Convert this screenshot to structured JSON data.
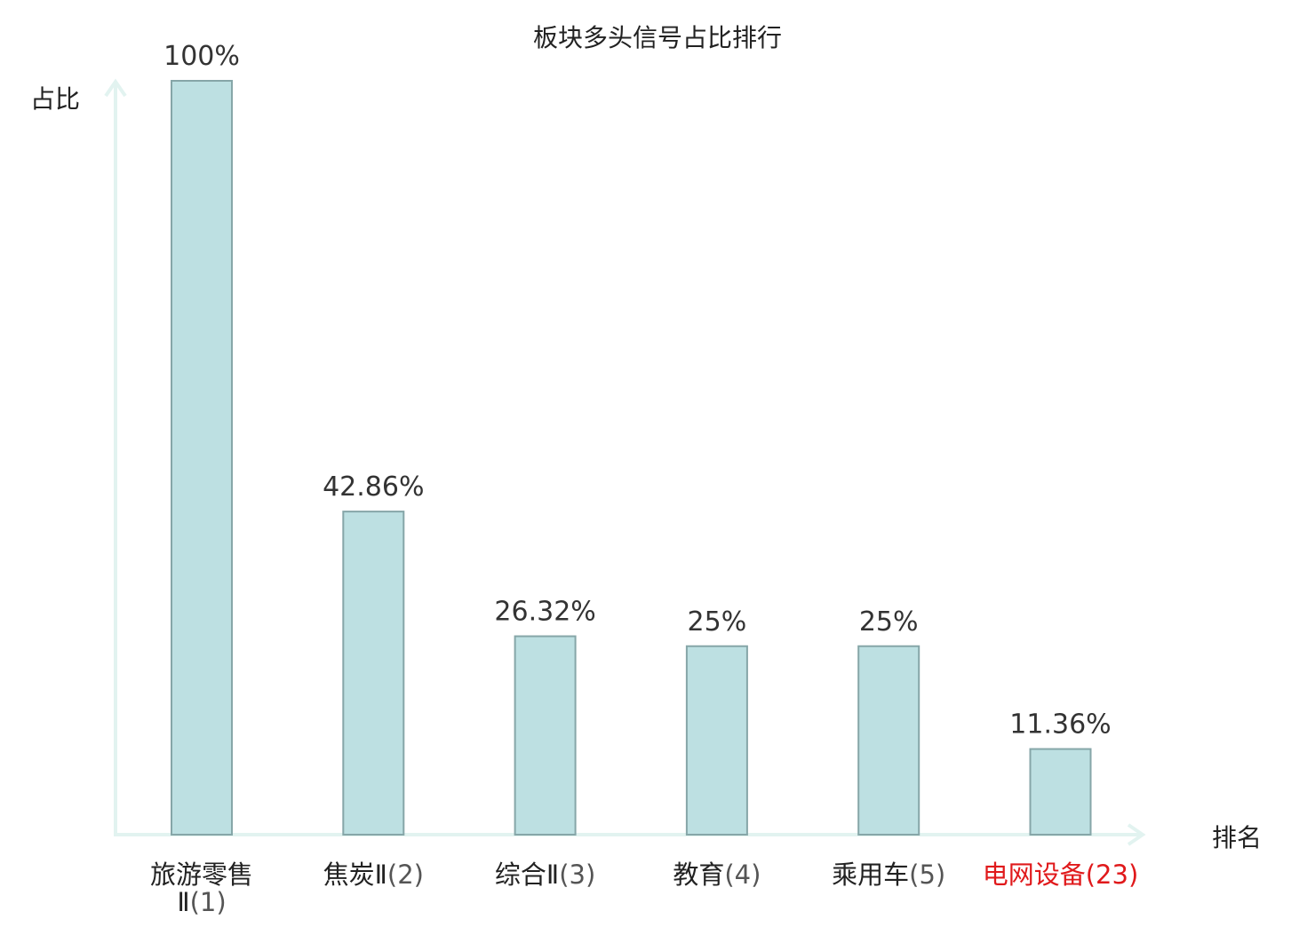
{
  "chart_data": {
    "type": "bar",
    "title": "板块多头信号占比排行",
    "ylabel": "占比",
    "xlabel": "排名",
    "ylim": [
      0,
      100
    ],
    "grid": false,
    "legend": "none",
    "categories": [
      {
        "name": "旅游零售Ⅱ",
        "rank": "(1)",
        "highlight": false
      },
      {
        "name": "焦炭Ⅱ",
        "rank": "(2)",
        "highlight": false
      },
      {
        "name": "综合Ⅱ",
        "rank": "(3)",
        "highlight": false
      },
      {
        "name": "教育",
        "rank": "(4)",
        "highlight": false
      },
      {
        "name": "乘用车",
        "rank": "(5)",
        "highlight": false
      },
      {
        "name": "电网设备",
        "rank": "(23)",
        "highlight": true
      }
    ],
    "values": [
      100,
      42.86,
      26.32,
      25,
      25,
      11.36
    ],
    "value_labels": [
      "100%",
      "42.86%",
      "26.32%",
      "25%",
      "25%",
      "11.36%"
    ]
  },
  "colors": {
    "bar_fill": "#bde0e2",
    "bar_stroke": "#86a6a8",
    "axis": "#e2f3f0",
    "text": "#333333",
    "rank_text": "#555555",
    "highlight": "#e0191b"
  }
}
